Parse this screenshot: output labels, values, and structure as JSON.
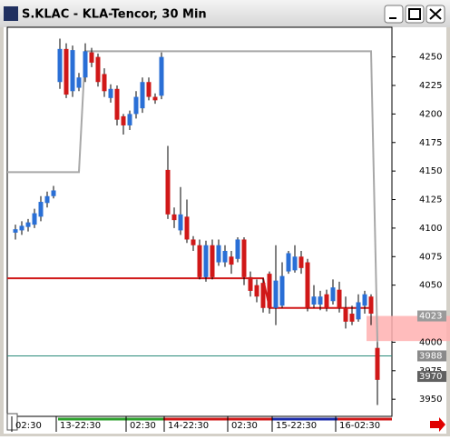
{
  "chart_data": {
    "type": "candlestick",
    "title": "S.KLAC - KLA-Tencor, 30 Min",
    "categories": [
      "02:30",
      null,
      null,
      null,
      null,
      null,
      null,
      "13-22:30",
      null,
      null,
      null,
      null,
      null,
      null,
      null,
      null,
      null,
      null,
      "02:30",
      null,
      null,
      null,
      null,
      null,
      "14-22:30",
      null,
      null,
      null,
      null,
      null,
      null,
      null,
      null,
      null,
      "02:30",
      null,
      null,
      null,
      null,
      null,
      null,
      "15-22:30",
      null,
      null,
      null,
      null,
      null,
      null,
      null,
      null,
      null,
      "16-02:30",
      null,
      null,
      null,
      null,
      null,
      null
    ],
    "open": [
      4096,
      4098,
      4101,
      4103,
      4110,
      4122,
      4128,
      4228,
      4257,
      4220,
      4223,
      4232,
      4254,
      4250,
      4235,
      4214,
      4222,
      4198,
      4190,
      4200,
      4205,
      4228,
      4215,
      4216,
      4151,
      4112,
      4098,
      4110,
      4090,
      4085,
      4057,
      4085,
      4070,
      4070,
      4075,
      4073,
      4090,
      4057,
      4050,
      4052,
      4060,
      4030,
      4032,
      4062,
      4063,
      4075,
      4070,
      4033,
      4033,
      4042,
      4036,
      4046,
      4030,
      4025,
      4020,
      4032,
      4040,
      3995
    ],
    "high": [
      4103,
      4106,
      4108,
      4117,
      4128,
      4132,
      4137,
      4266,
      4262,
      4260,
      4236,
      4262,
      4258,
      4253,
      4240,
      4226,
      4225,
      4200,
      4203,
      4220,
      4232,
      4232,
      4218,
      4254,
      4172,
      4118,
      4136,
      4125,
      4093,
      4090,
      4089,
      4090,
      4090,
      4085,
      4080,
      4092,
      4092,
      4062,
      4055,
      4056,
      4062,
      4085,
      4070,
      4080,
      4085,
      4080,
      4073,
      4050,
      4045,
      4046,
      4055,
      4053,
      4040,
      4032,
      4042,
      4045,
      4042,
      4000
    ],
    "low": [
      4090,
      4094,
      4097,
      4100,
      4106,
      4118,
      4126,
      4222,
      4214,
      4215,
      4220,
      4228,
      4241,
      4224,
      4215,
      4210,
      4190,
      4182,
      4186,
      4196,
      4201,
      4212,
      4209,
      4213,
      4108,
      4100,
      4094,
      4087,
      4080,
      4055,
      4053,
      4055,
      4067,
      4066,
      4060,
      4070,
      4050,
      4040,
      4035,
      4026,
      4025,
      4015,
      4030,
      4060,
      4061,
      4060,
      4027,
      4030,
      4028,
      4027,
      4033,
      4026,
      4012,
      4015,
      4018,
      4025,
      4015,
      3945
    ],
    "close": [
      4099,
      4102,
      4105,
      4113,
      4123,
      4128,
      4133,
      4257,
      4217,
      4256,
      4232,
      4255,
      4245,
      4228,
      4220,
      4222,
      4195,
      4190,
      4200,
      4215,
      4228,
      4215,
      4212,
      4250,
      4112,
      4107,
      4112,
      4090,
      4085,
      4057,
      4085,
      4057,
      4085,
      4080,
      4068,
      4090,
      4057,
      4045,
      4040,
      4030,
      4030,
      4054,
      4058,
      4078,
      4075,
      4065,
      4030,
      4040,
      4040,
      4030,
      4048,
      4030,
      4018,
      4018,
      4035,
      4042,
      4025,
      3967
    ],
    "up_color": "#2a6fd6",
    "down_color": "#d01818",
    "lines": [
      {
        "color": "#a8a8a8",
        "values": [
          4149,
          4149,
          4149,
          4149,
          4149,
          4149,
          4149,
          4149,
          4149,
          4149,
          4149,
          4255,
          4255,
          4255,
          4255,
          4255,
          4255,
          4255,
          4255,
          4255,
          4255,
          4255,
          4255,
          4255,
          4255,
          4255,
          4255,
          4255,
          4255,
          4255,
          4255,
          4255,
          4255,
          4255,
          4255,
          4255,
          4255,
          4255,
          4255,
          4255,
          4255,
          4255,
          4255,
          4255,
          4255,
          4255,
          4255,
          4255,
          4255,
          4255,
          4255,
          4255,
          4255,
          4255,
          4255,
          4255,
          4255,
          4000
        ]
      },
      {
        "color": "#d01818",
        "values": [
          4056,
          4056,
          4056,
          4056,
          4056,
          4056,
          4056,
          4056,
          4056,
          4056,
          4056,
          4056,
          4056,
          4056,
          4056,
          4056,
          4056,
          4056,
          4056,
          4056,
          4056,
          4056,
          4056,
          4056,
          4056,
          4056,
          4056,
          4056,
          4056,
          4056,
          4056,
          4056,
          4056,
          4056,
          4056,
          4056,
          4056,
          4056,
          4056,
          4056,
          4030,
          4030,
          4030,
          4030,
          4030,
          4030,
          4030,
          4030,
          4030,
          4030,
          4030,
          4030,
          4030,
          4030,
          4030,
          4030,
          4030,
          null
        ]
      }
    ],
    "band": {
      "from": 4001,
      "to": 4023,
      "color": "#ffb0b0"
    },
    "markers": [
      {
        "value": 4023,
        "label": "4023",
        "color": "#9a9a9a",
        "line": false
      },
      {
        "value": 3988,
        "label": "3988",
        "color": "#8a8a8a",
        "line": true
      },
      {
        "value": 3970,
        "label": "3970",
        "color": "#606060",
        "line": false
      }
    ],
    "ylim": [
      3935,
      4276
    ],
    "yticks": [
      4250,
      4225,
      4200,
      4175,
      4150,
      4125,
      4100,
      4075,
      4050,
      4000,
      3975,
      3950
    ]
  }
}
